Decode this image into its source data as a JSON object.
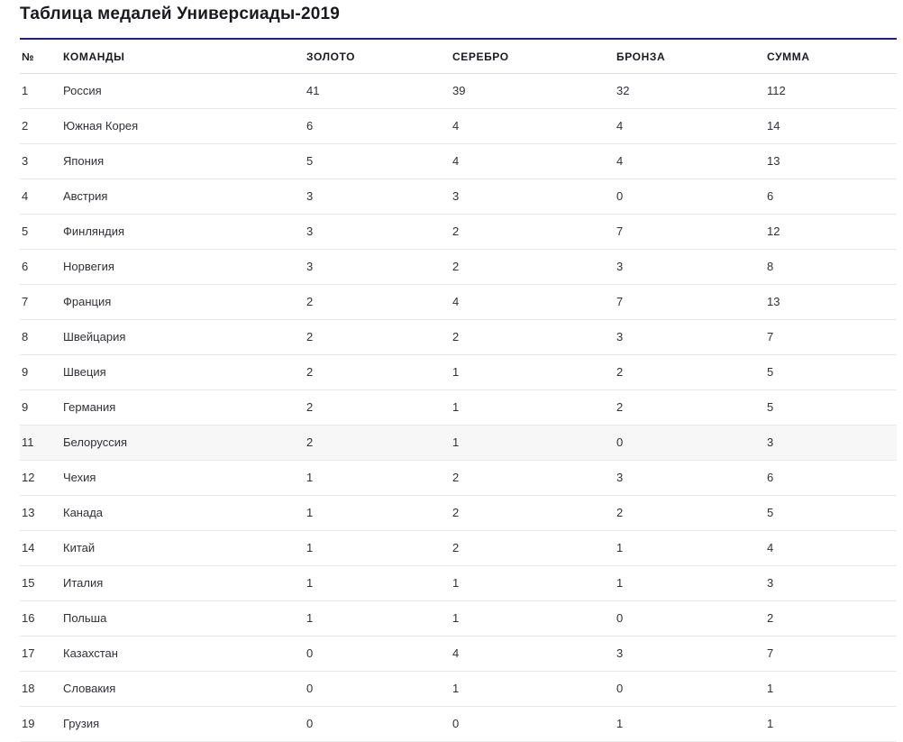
{
  "page": {
    "title": "Таблица медалей Универсиады-2019"
  },
  "table": {
    "columns": [
      "№",
      "КОМАНДЫ",
      "ЗОЛОТО",
      "СЕРЕБРО",
      "БРОНЗА",
      "СУММА"
    ],
    "rows": [
      {
        "rank": "1",
        "team": "Россия",
        "gold": "41",
        "silver": "39",
        "bronze": "32",
        "total": "112",
        "highlighted": false
      },
      {
        "rank": "2",
        "team": "Южная Корея",
        "gold": "6",
        "silver": "4",
        "bronze": "4",
        "total": "14",
        "highlighted": false
      },
      {
        "rank": "3",
        "team": "Япония",
        "gold": "5",
        "silver": "4",
        "bronze": "4",
        "total": "13",
        "highlighted": false
      },
      {
        "rank": "4",
        "team": "Австрия",
        "gold": "3",
        "silver": "3",
        "bronze": "0",
        "total": "6",
        "highlighted": false
      },
      {
        "rank": "5",
        "team": "Финляндия",
        "gold": "3",
        "silver": "2",
        "bronze": "7",
        "total": "12",
        "highlighted": false
      },
      {
        "rank": "6",
        "team": "Норвегия",
        "gold": "3",
        "silver": "2",
        "bronze": "3",
        "total": "8",
        "highlighted": false
      },
      {
        "rank": "7",
        "team": "Франция",
        "gold": "2",
        "silver": "4",
        "bronze": "7",
        "total": "13",
        "highlighted": false
      },
      {
        "rank": "8",
        "team": "Швейцария",
        "gold": "2",
        "silver": "2",
        "bronze": "3",
        "total": "7",
        "highlighted": false
      },
      {
        "rank": "9",
        "team": "Швеция",
        "gold": "2",
        "silver": "1",
        "bronze": "2",
        "total": "5",
        "highlighted": false
      },
      {
        "rank": "9",
        "team": "Германия",
        "gold": "2",
        "silver": "1",
        "bronze": "2",
        "total": "5",
        "highlighted": false
      },
      {
        "rank": "11",
        "team": "Белоруссия",
        "gold": "2",
        "silver": "1",
        "bronze": "0",
        "total": "3",
        "highlighted": true
      },
      {
        "rank": "12",
        "team": "Чехия",
        "gold": "1",
        "silver": "2",
        "bronze": "3",
        "total": "6",
        "highlighted": false
      },
      {
        "rank": "13",
        "team": "Канада",
        "gold": "1",
        "silver": "2",
        "bronze": "2",
        "total": "5",
        "highlighted": false
      },
      {
        "rank": "14",
        "team": "Китай",
        "gold": "1",
        "silver": "2",
        "bronze": "1",
        "total": "4",
        "highlighted": false
      },
      {
        "rank": "15",
        "team": "Италия",
        "gold": "1",
        "silver": "1",
        "bronze": "1",
        "total": "3",
        "highlighted": false
      },
      {
        "rank": "16",
        "team": "Польша",
        "gold": "1",
        "silver": "1",
        "bronze": "0",
        "total": "2",
        "highlighted": false
      },
      {
        "rank": "17",
        "team": "Казахстан",
        "gold": "0",
        "silver": "4",
        "bronze": "3",
        "total": "7",
        "highlighted": false
      },
      {
        "rank": "18",
        "team": "Словакия",
        "gold": "0",
        "silver": "1",
        "bronze": "0",
        "total": "1",
        "highlighted": false
      },
      {
        "rank": "19",
        "team": "Грузия",
        "gold": "0",
        "silver": "0",
        "bronze": "1",
        "total": "1",
        "highlighted": false
      }
    ]
  },
  "colors": {
    "accent_top_border": "#232270",
    "title_text": "#19191f",
    "header_text": "#1a1a24",
    "cell_text": "#303036",
    "row_divider": "#e8e8ea",
    "highlight_row_bg": "#f7f7f8"
  },
  "chart_data": {
    "type": "table",
    "title": "Таблица медалей Универсиады-2019",
    "columns": [
      "№",
      "КОМАНДЫ",
      "ЗОЛОТО",
      "СЕРЕБРО",
      "БРОНЗА",
      "СУММА"
    ],
    "rows": [
      [
        1,
        "Россия",
        41,
        39,
        32,
        112
      ],
      [
        2,
        "Южная Корея",
        6,
        4,
        4,
        14
      ],
      [
        3,
        "Япония",
        5,
        4,
        4,
        13
      ],
      [
        4,
        "Австрия",
        3,
        3,
        0,
        6
      ],
      [
        5,
        "Финляндия",
        3,
        2,
        7,
        12
      ],
      [
        6,
        "Норвегия",
        3,
        2,
        3,
        8
      ],
      [
        7,
        "Франция",
        2,
        4,
        7,
        13
      ],
      [
        8,
        "Швейцария",
        2,
        2,
        3,
        7
      ],
      [
        9,
        "Швеция",
        2,
        1,
        2,
        5
      ],
      [
        9,
        "Германия",
        2,
        1,
        2,
        5
      ],
      [
        11,
        "Белоруссия",
        2,
        1,
        0,
        3
      ],
      [
        12,
        "Чехия",
        1,
        2,
        3,
        6
      ],
      [
        13,
        "Канада",
        1,
        2,
        2,
        5
      ],
      [
        14,
        "Китай",
        1,
        2,
        1,
        4
      ],
      [
        15,
        "Италия",
        1,
        1,
        1,
        3
      ],
      [
        16,
        "Польша",
        1,
        1,
        0,
        2
      ],
      [
        17,
        "Казахстан",
        0,
        4,
        3,
        7
      ],
      [
        18,
        "Словакия",
        0,
        1,
        0,
        1
      ],
      [
        19,
        "Грузия",
        0,
        0,
        1,
        1
      ]
    ],
    "notes": "Row with rank 11 (Белоруссия) is rendered with a light-gray highlighted background."
  }
}
